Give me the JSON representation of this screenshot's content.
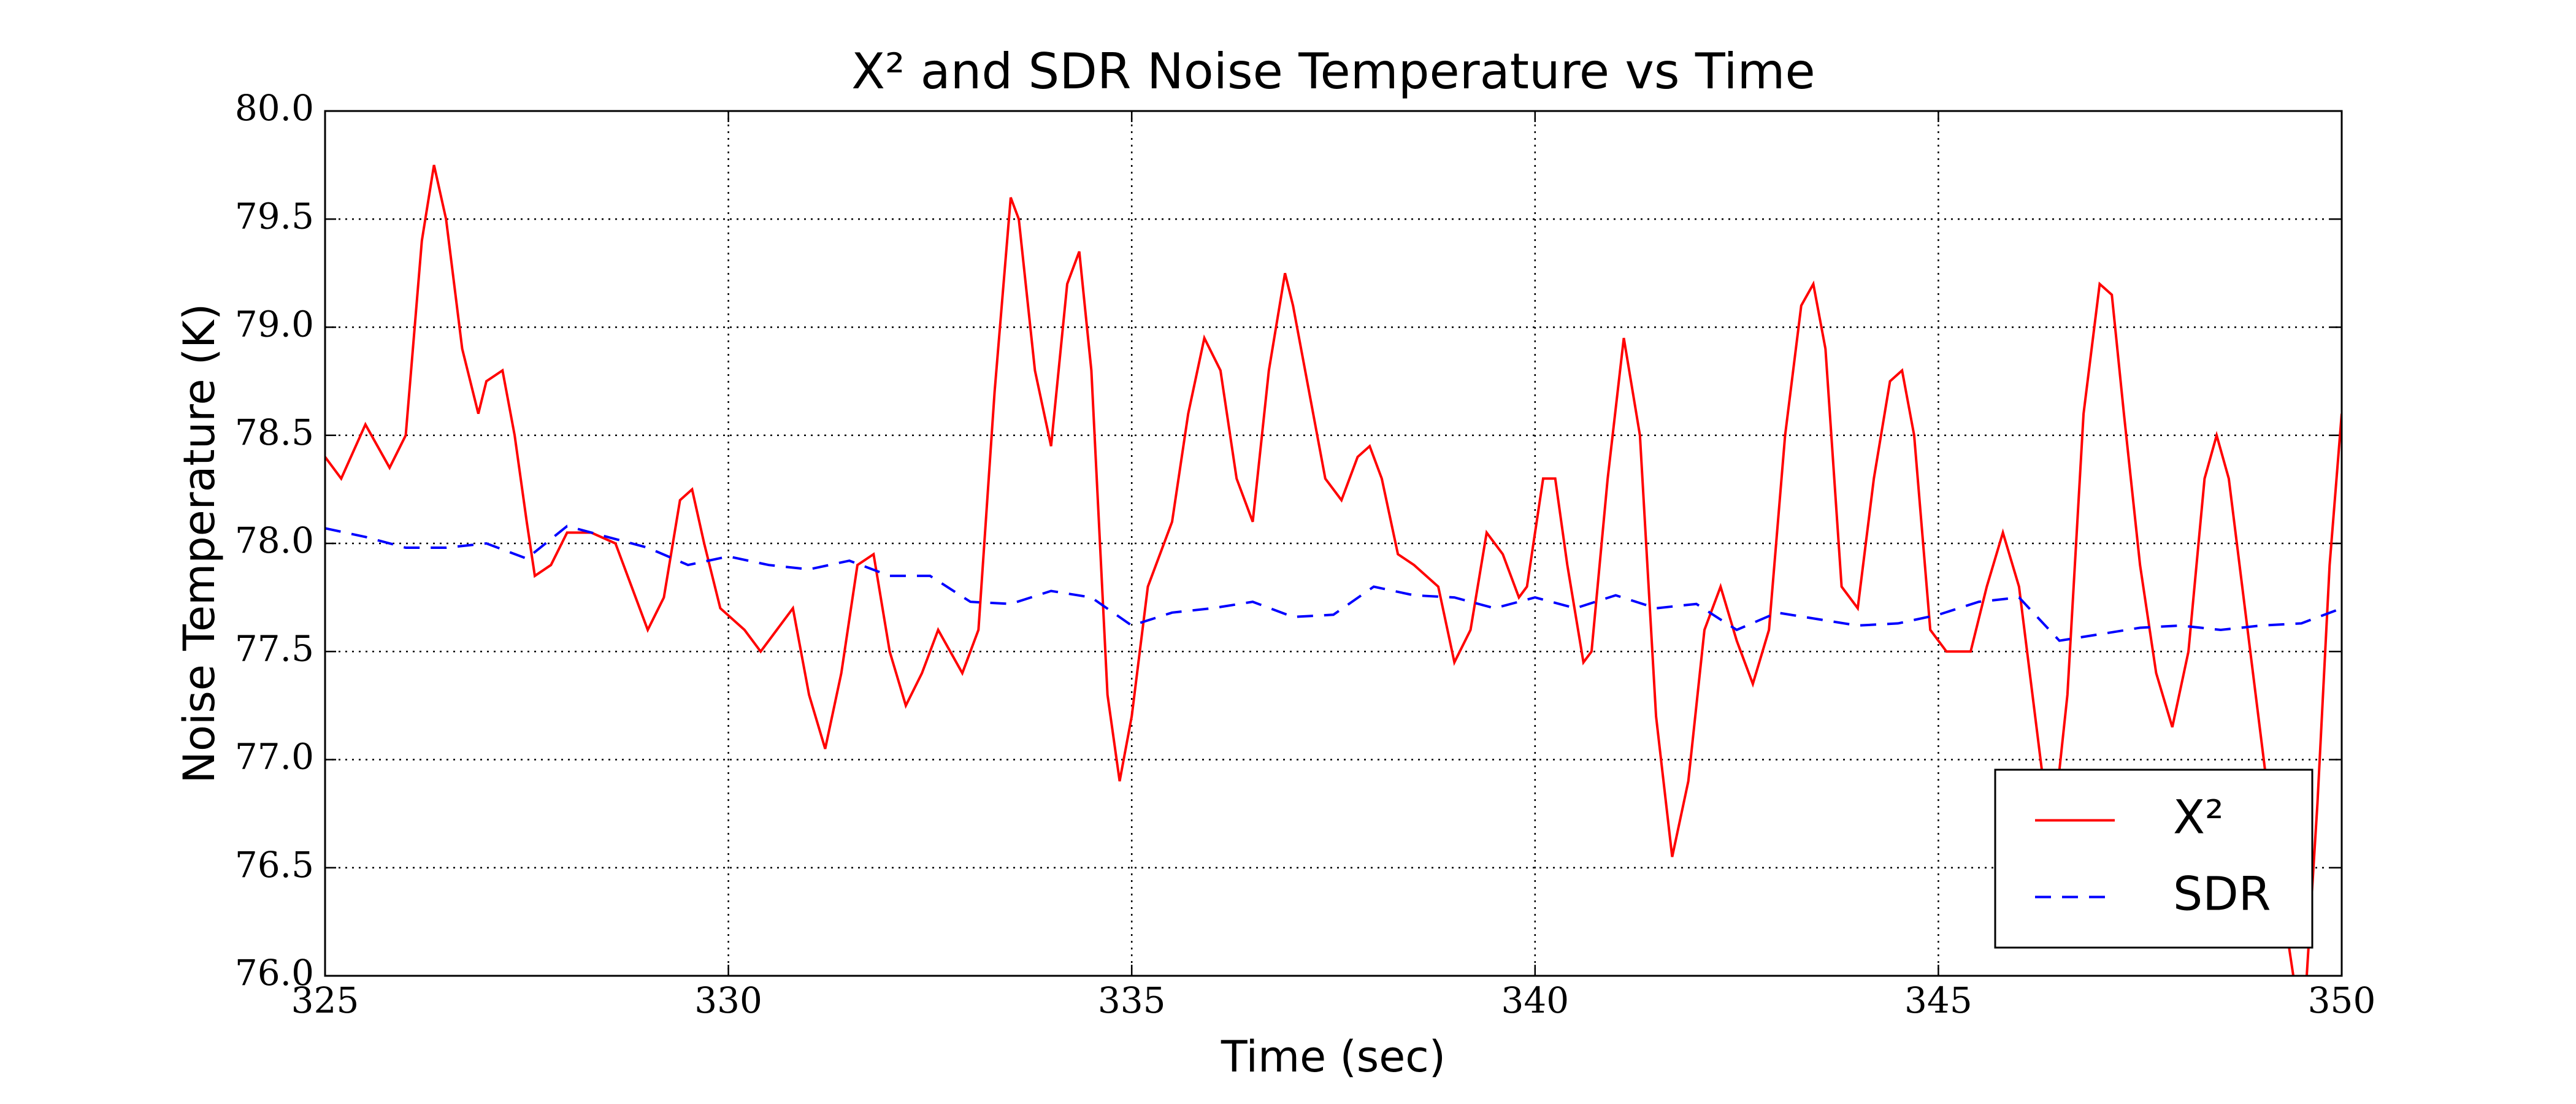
{
  "chart_data": {
    "type": "line",
    "title": "X² and SDR Noise Temperature vs Time",
    "x_label": "Time (sec)",
    "y_label": "Noise Temperature (K)",
    "xlim": [
      325,
      350
    ],
    "ylim": [
      76,
      80
    ],
    "xticks": [
      325,
      330,
      335,
      340,
      345,
      350
    ],
    "yticks": [
      {
        "value": 76,
        "label": "76.0"
      },
      {
        "value": 76.5,
        "label": "76.5"
      },
      {
        "value": 77,
        "label": "77.0"
      },
      {
        "value": 77.5,
        "label": "77.5"
      },
      {
        "value": 78,
        "label": "78.0"
      },
      {
        "value": 78.5,
        "label": "78.5"
      },
      {
        "value": 79,
        "label": "79.0"
      },
      {
        "value": 79.5,
        "label": "79.5"
      },
      {
        "value": 80,
        "label": "80.0"
      }
    ],
    "grid": true,
    "legend": "lower right",
    "series": [
      {
        "name": "X²",
        "color": "#ff0000",
        "dash": "solid",
        "x": [
          325.0,
          325.2,
          325.5,
          325.8,
          326.0,
          326.2,
          326.35,
          326.5,
          326.7,
          326.9,
          327.0,
          327.2,
          327.35,
          327.5,
          327.6,
          327.8,
          328.0,
          328.3,
          328.6,
          328.8,
          329.0,
          329.2,
          329.4,
          329.55,
          329.7,
          329.9,
          330.2,
          330.4,
          330.6,
          330.8,
          331.0,
          331.2,
          331.4,
          331.6,
          331.8,
          332.0,
          332.2,
          332.4,
          332.6,
          332.9,
          333.1,
          333.3,
          333.5,
          333.6,
          333.8,
          334.0,
          334.2,
          334.35,
          334.5,
          334.7,
          334.85,
          335.0,
          335.2,
          335.5,
          335.7,
          335.9,
          336.1,
          336.3,
          336.5,
          336.7,
          336.9,
          337.0,
          337.2,
          337.4,
          337.6,
          337.8,
          337.95,
          338.1,
          338.3,
          338.5,
          338.8,
          339.0,
          339.2,
          339.4,
          339.6,
          339.8,
          339.9,
          340.1,
          340.25,
          340.4,
          340.6,
          340.7,
          340.9,
          341.1,
          341.3,
          341.5,
          341.7,
          341.9,
          342.1,
          342.3,
          342.5,
          342.7,
          342.9,
          343.1,
          343.3,
          343.45,
          343.6,
          343.8,
          344.0,
          344.2,
          344.4,
          344.55,
          344.7,
          344.9,
          345.1,
          345.4,
          345.6,
          345.8,
          346.0,
          346.2,
          346.4,
          346.6,
          346.8,
          347.0,
          347.15,
          347.3,
          347.5,
          347.7,
          347.9,
          348.1,
          348.3,
          348.45,
          348.6,
          348.8,
          349.0,
          349.2,
          349.4,
          349.55,
          349.7,
          349.85,
          350.0
        ],
        "values": [
          78.4,
          78.3,
          78.55,
          78.35,
          78.5,
          79.4,
          79.75,
          79.5,
          78.9,
          78.6,
          78.75,
          78.8,
          78.5,
          78.1,
          77.85,
          77.9,
          78.05,
          78.05,
          78.0,
          77.8,
          77.6,
          77.75,
          78.2,
          78.25,
          78.0,
          77.7,
          77.6,
          77.5,
          77.6,
          77.7,
          77.3,
          77.05,
          77.4,
          77.9,
          77.95,
          77.5,
          77.25,
          77.4,
          77.6,
          77.4,
          77.6,
          78.7,
          79.6,
          79.5,
          78.8,
          78.45,
          79.2,
          79.35,
          78.8,
          77.3,
          76.9,
          77.2,
          77.8,
          78.1,
          78.6,
          78.95,
          78.8,
          78.3,
          78.1,
          78.8,
          79.25,
          79.1,
          78.7,
          78.3,
          78.2,
          78.4,
          78.45,
          78.3,
          77.95,
          77.9,
          77.8,
          77.45,
          77.6,
          78.05,
          77.95,
          77.75,
          77.8,
          78.3,
          78.3,
          77.9,
          77.45,
          77.5,
          78.3,
          78.95,
          78.5,
          77.2,
          76.55,
          76.9,
          77.6,
          77.8,
          77.55,
          77.35,
          77.6,
          78.5,
          79.1,
          79.2,
          78.9,
          77.8,
          77.7,
          78.3,
          78.75,
          78.8,
          78.5,
          77.6,
          77.5,
          77.5,
          77.8,
          78.05,
          77.8,
          77.2,
          76.6,
          77.3,
          78.6,
          79.2,
          79.15,
          78.6,
          77.9,
          77.4,
          77.15,
          77.5,
          78.3,
          78.5,
          78.3,
          77.7,
          77.1,
          76.5,
          76.0,
          75.9,
          76.8,
          77.9,
          78.6
        ]
      },
      {
        "name": "SDR",
        "color": "#0000ff",
        "dash": "dashed",
        "x": [
          325.0,
          325.5,
          326.0,
          326.5,
          327.0,
          327.5,
          328.0,
          328.5,
          329.0,
          329.5,
          330.0,
          330.5,
          331.0,
          331.5,
          332.0,
          332.5,
          333.0,
          333.5,
          334.0,
          334.5,
          335.0,
          335.5,
          336.0,
          336.5,
          337.0,
          337.5,
          338.0,
          338.5,
          339.0,
          339.5,
          340.0,
          340.5,
          341.0,
          341.5,
          342.0,
          342.5,
          343.0,
          343.5,
          344.0,
          344.5,
          345.0,
          345.5,
          346.0,
          346.5,
          347.0,
          347.5,
          348.0,
          348.5,
          349.0,
          349.5,
          350.0
        ],
        "values": [
          78.07,
          78.03,
          77.98,
          77.98,
          78.0,
          77.93,
          78.08,
          78.03,
          77.98,
          77.9,
          77.94,
          77.9,
          77.88,
          77.92,
          77.85,
          77.85,
          77.73,
          77.72,
          77.78,
          77.75,
          77.62,
          77.68,
          77.7,
          77.73,
          77.66,
          77.67,
          77.8,
          77.76,
          77.75,
          77.7,
          77.75,
          77.7,
          77.76,
          77.7,
          77.72,
          77.6,
          77.68,
          77.65,
          77.62,
          77.63,
          77.67,
          77.73,
          77.75,
          77.55,
          77.58,
          77.61,
          77.62,
          77.6,
          77.62,
          77.63,
          77.7
        ]
      }
    ]
  }
}
